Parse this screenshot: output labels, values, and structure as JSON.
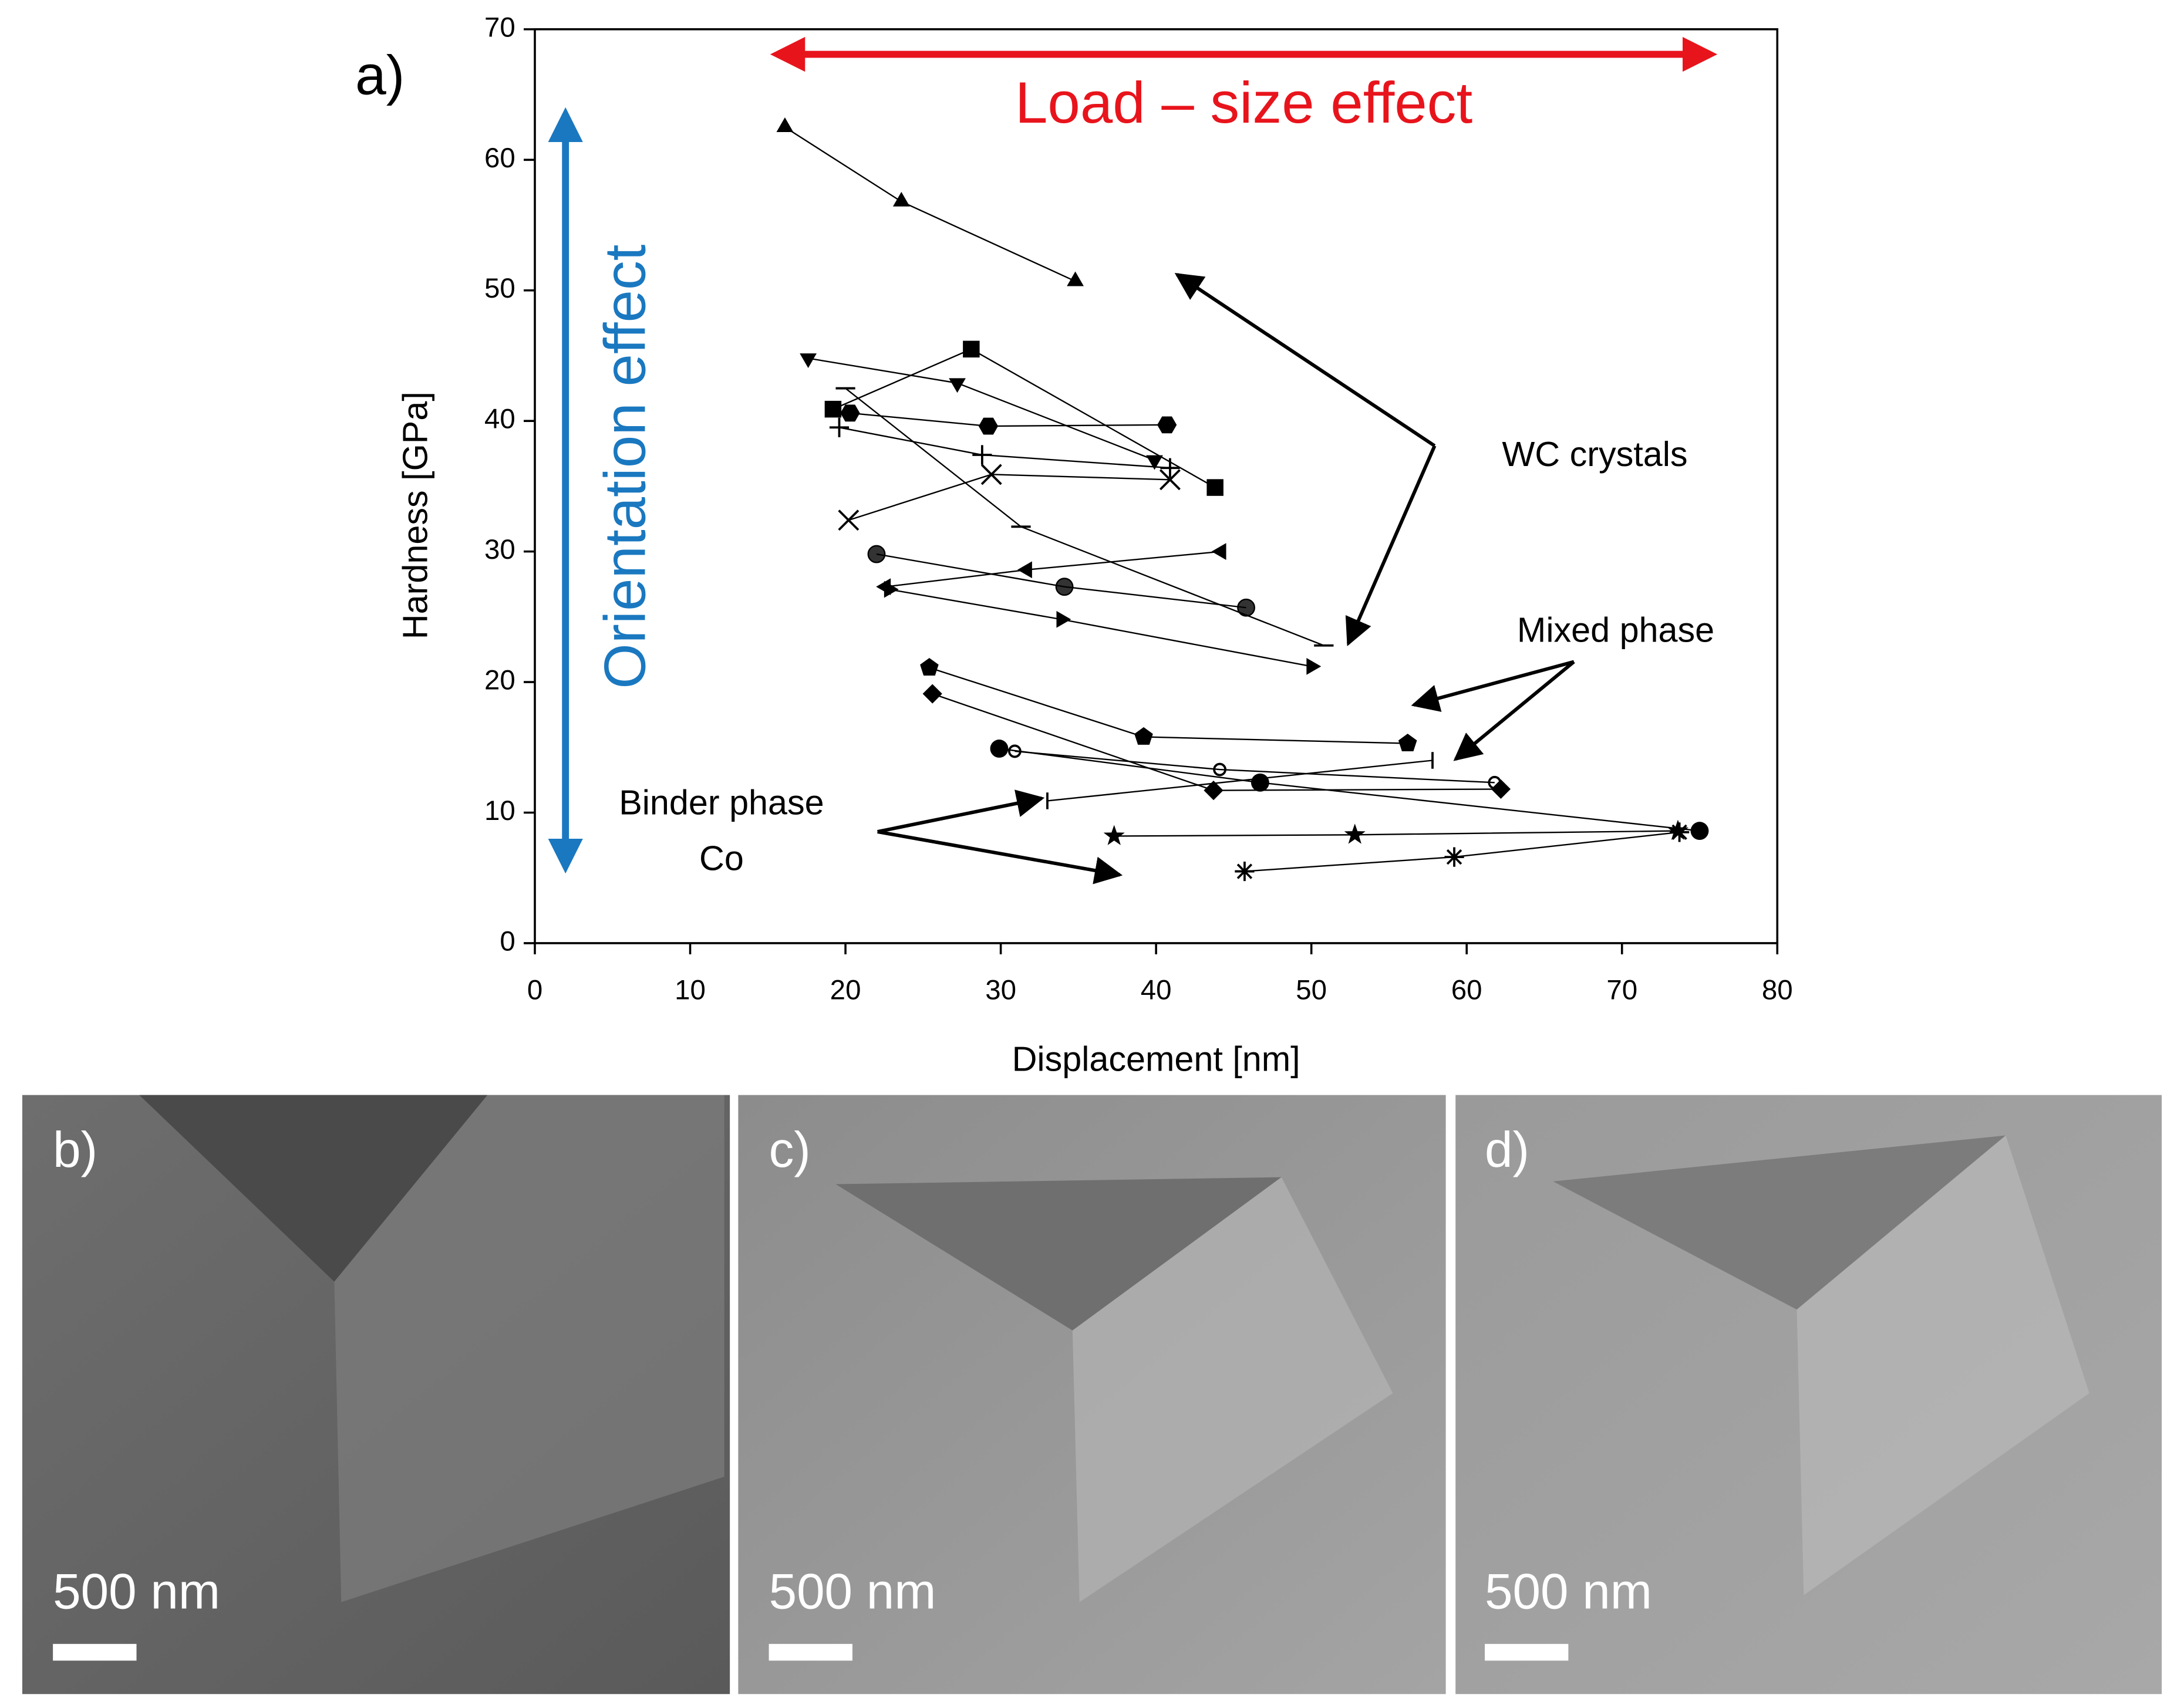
{
  "chart_data": {
    "type": "scatter",
    "panel_label": "a)",
    "xlabel": "Displacement [nm]",
    "ylabel": "Hardness [GPa]",
    "xlim": [
      0,
      80
    ],
    "xticks": [
      0,
      10,
      20,
      30,
      40,
      50,
      60,
      70,
      80
    ],
    "ylim": [
      0,
      70
    ],
    "yticks": [
      0,
      10,
      20,
      30,
      40,
      50,
      60,
      70
    ],
    "color": "#000000",
    "annotations": {
      "load": "Load – size effect",
      "orientation": "Orientation effect",
      "wc": "WC crystals",
      "mixed": "Mixed phase",
      "binder": "Binder phase",
      "co": "Co"
    },
    "series": [
      {
        "marker": "triangle-up",
        "x": [
          16.1,
          23.6,
          34.8
        ],
        "values": [
          62.5,
          56.8,
          50.7
        ]
      },
      {
        "marker": "triangle-down",
        "x": [
          17.6,
          27.2,
          39.9
        ],
        "values": [
          44.8,
          42.9,
          37.0
        ]
      },
      {
        "marker": "square",
        "x": [
          19.2,
          28.1,
          43.8
        ],
        "values": [
          40.9,
          45.5,
          34.9
        ]
      },
      {
        "marker": "hexagon",
        "x": [
          20.3,
          29.2,
          40.7
        ],
        "values": [
          40.6,
          39.6,
          39.7
        ]
      },
      {
        "marker": "plus",
        "x": [
          19.6,
          28.8,
          40.9
        ],
        "values": [
          39.5,
          37.4,
          36.4
        ]
      },
      {
        "marker": "cross",
        "x": [
          20.2,
          29.4,
          40.9
        ],
        "values": [
          32.4,
          35.9,
          35.5
        ]
      },
      {
        "marker": "dash",
        "x": [
          20.0,
          31.3,
          50.8
        ],
        "values": [
          42.5,
          31.9,
          22.8
        ]
      },
      {
        "marker": "half-circle",
        "x": [
          22.0,
          34.1,
          45.8
        ],
        "values": [
          29.8,
          27.3,
          25.7
        ]
      },
      {
        "marker": "triangle-left",
        "x": [
          22.6,
          31.7,
          44.2
        ],
        "values": [
          27.3,
          28.6,
          30.0
        ]
      },
      {
        "marker": "triangle-right",
        "x": [
          22.8,
          33.9,
          50.0
        ],
        "values": [
          27.1,
          24.8,
          21.2
        ]
      },
      {
        "marker": "pentagon",
        "x": [
          25.4,
          39.2,
          56.2
        ],
        "values": [
          21.1,
          15.8,
          15.3
        ]
      },
      {
        "marker": "diamond",
        "x": [
          25.6,
          43.7,
          62.2
        ],
        "values": [
          19.1,
          11.7,
          11.8
        ]
      },
      {
        "marker": "circle",
        "x": [
          29.9,
          46.7,
          75.0
        ],
        "values": [
          14.9,
          12.3,
          8.6
        ]
      },
      {
        "marker": "star",
        "x": [
          37.3,
          52.8,
          73.6
        ],
        "values": [
          8.2,
          8.3,
          8.6
        ]
      },
      {
        "marker": "asterisk",
        "x": [
          45.7,
          59.2,
          73.7
        ],
        "values": [
          5.5,
          6.6,
          8.5
        ]
      },
      {
        "marker": "bar",
        "x": [
          33.0,
          57.8
        ],
        "values": [
          10.9,
          14.0
        ]
      },
      {
        "marker": "small-circle",
        "x": [
          30.9,
          44.1,
          61.8
        ],
        "values": [
          14.7,
          13.3,
          12.3
        ]
      }
    ]
  },
  "images": {
    "labels": [
      "b)",
      "c)",
      "d)"
    ],
    "scale_bar": "500 nm"
  }
}
